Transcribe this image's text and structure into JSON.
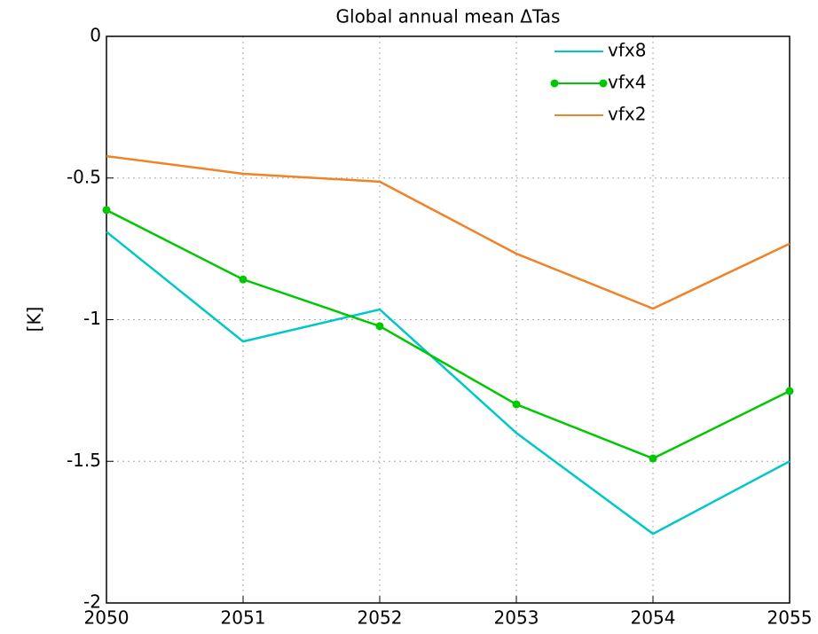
{
  "chart_data": {
    "type": "line",
    "title": "Global annual mean ΔTas",
    "y_label": "[K]",
    "x": [
      2050,
      2051,
      2052,
      2053,
      2054,
      2055
    ],
    "xlim": [
      2050,
      2055
    ],
    "xticks": [
      2050,
      2051,
      2052,
      2053,
      2054,
      2055
    ],
    "ylim": [
      -2,
      0
    ],
    "yticks": [
      -2,
      -1.5,
      -1,
      -0.5,
      0
    ],
    "grid": true,
    "legend": "top-right",
    "series": [
      {
        "name": "vfx8",
        "color": "#00c8c8",
        "markers": false,
        "values": [
          -0.69,
          -1.077,
          -0.964,
          -1.4,
          -1.756,
          -1.5
        ]
      },
      {
        "name": "vfx4",
        "color": "#00c800",
        "markers": true,
        "values": [
          -0.613,
          -0.858,
          -1.023,
          -1.299,
          -1.49,
          -1.252
        ]
      },
      {
        "name": "vfx2",
        "color": "#f08228",
        "markers": false,
        "values": [
          -0.423,
          -0.485,
          -0.513,
          -0.767,
          -0.961,
          -0.732
        ]
      }
    ]
  }
}
